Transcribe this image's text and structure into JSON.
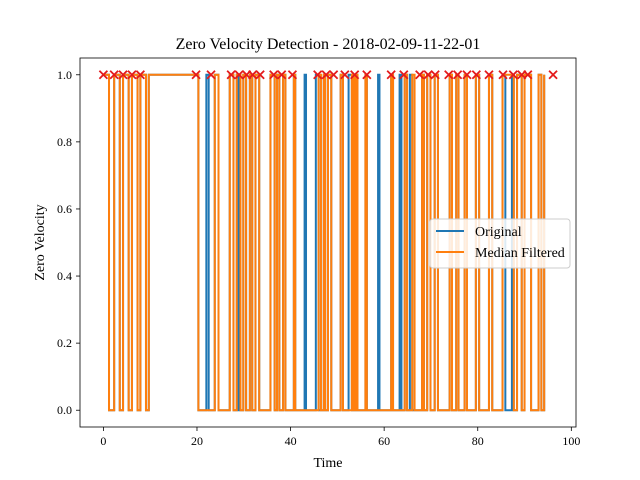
{
  "colors": {
    "original": "#1f77b4",
    "filtered": "#ff7f0e",
    "marker": "#e41a1c",
    "legend_border": "#cccccc"
  },
  "chart_data": {
    "type": "line",
    "title": "Zero Velocity Detection - 2018-02-09-11-22-01",
    "xlabel": "Time",
    "ylabel": "Zero Velocity",
    "xlim": [
      -5,
      101
    ],
    "ylim": [
      -0.05,
      1.05
    ],
    "xticks": [
      0,
      20,
      40,
      60,
      80,
      100
    ],
    "yticks": [
      0.0,
      0.2,
      0.4,
      0.6,
      0.8,
      1.0
    ],
    "xtick_labels": [
      "0",
      "20",
      "40",
      "60",
      "80",
      "100"
    ],
    "ytick_labels": [
      "0.0",
      "0.2",
      "0.4",
      "0.6",
      "0.8",
      "1.0"
    ],
    "legend": {
      "placement": "center-right",
      "entries": [
        "Original",
        "Median Filtered"
      ]
    },
    "grid": false,
    "series": [
      {
        "name": "Original",
        "step": "post",
        "points": [
          [
            0,
            1
          ],
          [
            1.2,
            0
          ],
          [
            2.3,
            1
          ],
          [
            3.5,
            0
          ],
          [
            4.2,
            1
          ],
          [
            5.4,
            0
          ],
          [
            6.1,
            1
          ],
          [
            7.3,
            0
          ],
          [
            7.9,
            1
          ],
          [
            9.1,
            0
          ],
          [
            9.7,
            1
          ],
          [
            20.3,
            0
          ],
          [
            22.0,
            1
          ],
          [
            22.5,
            0
          ],
          [
            23.8,
            1
          ],
          [
            24.6,
            0
          ],
          [
            27.0,
            1
          ],
          [
            27.8,
            0
          ],
          [
            28.5,
            1
          ],
          [
            28.9,
            0
          ],
          [
            29.9,
            1
          ],
          [
            30.5,
            0
          ],
          [
            31.3,
            1
          ],
          [
            31.8,
            0
          ],
          [
            32.5,
            1
          ],
          [
            33.3,
            0
          ],
          [
            35.7,
            1
          ],
          [
            36.6,
            0
          ],
          [
            37.1,
            1
          ],
          [
            37.6,
            0
          ],
          [
            38.4,
            1
          ],
          [
            38.9,
            0
          ],
          [
            40.7,
            1
          ],
          [
            41.0,
            0
          ],
          [
            43.0,
            1
          ],
          [
            43.3,
            0
          ],
          [
            45.4,
            1
          ],
          [
            46.0,
            0
          ],
          [
            47.1,
            1
          ],
          [
            47.4,
            0
          ],
          [
            48.0,
            1
          ],
          [
            48.7,
            0
          ],
          [
            50.7,
            1
          ],
          [
            51.2,
            0
          ],
          [
            52.4,
            1
          ],
          [
            53.1,
            0
          ],
          [
            53.9,
            1
          ],
          [
            54.3,
            0
          ],
          [
            56.0,
            1
          ],
          [
            56.3,
            0
          ],
          [
            58.7,
            1
          ],
          [
            59.0,
            0
          ],
          [
            61.5,
            1
          ],
          [
            61.9,
            0
          ],
          [
            63.3,
            1
          ],
          [
            63.7,
            0
          ],
          [
            64.4,
            1
          ],
          [
            64.9,
            0
          ],
          [
            65.5,
            1
          ],
          [
            66.0,
            0
          ],
          [
            68.1,
            1
          ],
          [
            68.5,
            0
          ],
          [
            69.2,
            1
          ],
          [
            69.9,
            0
          ],
          [
            70.8,
            1
          ],
          [
            71.5,
            0
          ],
          [
            74.0,
            1
          ],
          [
            74.5,
            0
          ],
          [
            75.4,
            1
          ],
          [
            75.9,
            0
          ],
          [
            77.2,
            1
          ],
          [
            77.7,
            0
          ],
          [
            79.6,
            1
          ],
          [
            80.3,
            0
          ],
          [
            82.4,
            1
          ],
          [
            83.1,
            0
          ],
          [
            85.3,
            1
          ],
          [
            85.9,
            0
          ],
          [
            87.3,
            1
          ],
          [
            87.7,
            0
          ],
          [
            88.4,
            1
          ],
          [
            89.4,
            0
          ],
          [
            90.0,
            1
          ],
          [
            91.4,
            0
          ],
          [
            93.0,
            1
          ],
          [
            93.6,
            0
          ],
          [
            94.2,
            1
          ]
        ]
      },
      {
        "name": "Median Filtered",
        "step": "post",
        "points": [
          [
            0,
            1
          ],
          [
            1.2,
            0
          ],
          [
            2.3,
            1
          ],
          [
            3.5,
            0
          ],
          [
            4.2,
            1
          ],
          [
            5.4,
            0
          ],
          [
            6.1,
            1
          ],
          [
            7.3,
            0
          ],
          [
            7.9,
            1
          ],
          [
            9.1,
            0
          ],
          [
            9.7,
            1
          ],
          [
            20.3,
            0
          ],
          [
            23.8,
            1
          ],
          [
            24.6,
            0
          ],
          [
            27.0,
            1
          ],
          [
            27.8,
            0
          ],
          [
            28.5,
            1
          ],
          [
            29.3,
            0
          ],
          [
            29.9,
            1
          ],
          [
            30.5,
            0
          ],
          [
            31.3,
            1
          ],
          [
            31.8,
            0
          ],
          [
            32.5,
            1
          ],
          [
            33.3,
            0
          ],
          [
            35.7,
            1
          ],
          [
            36.6,
            0
          ],
          [
            37.1,
            1
          ],
          [
            37.6,
            0
          ],
          [
            38.4,
            1
          ],
          [
            38.9,
            0
          ],
          [
            40.7,
            1
          ],
          [
            41.0,
            0
          ],
          [
            46.0,
            1
          ],
          [
            46.5,
            0
          ],
          [
            47.1,
            1
          ],
          [
            47.4,
            0
          ],
          [
            48.0,
            1
          ],
          [
            48.7,
            0
          ],
          [
            50.7,
            1
          ],
          [
            51.2,
            0
          ],
          [
            53.1,
            1
          ],
          [
            53.5,
            0
          ],
          [
            53.9,
            1
          ],
          [
            54.3,
            0
          ],
          [
            56.0,
            1
          ],
          [
            56.3,
            0
          ],
          [
            61.5,
            1
          ],
          [
            61.9,
            0
          ],
          [
            64.4,
            1
          ],
          [
            64.9,
            0
          ],
          [
            66.0,
            1
          ],
          [
            66.5,
            0
          ],
          [
            68.1,
            1
          ],
          [
            68.5,
            0
          ],
          [
            69.2,
            1
          ],
          [
            69.9,
            0
          ],
          [
            70.8,
            1
          ],
          [
            71.5,
            0
          ],
          [
            74.0,
            1
          ],
          [
            74.5,
            0
          ],
          [
            75.4,
            1
          ],
          [
            75.9,
            0
          ],
          [
            77.2,
            1
          ],
          [
            77.7,
            0
          ],
          [
            79.6,
            1
          ],
          [
            80.3,
            0
          ],
          [
            82.4,
            1
          ],
          [
            83.1,
            0
          ],
          [
            85.3,
            1
          ],
          [
            87.7,
            0
          ],
          [
            88.4,
            1
          ],
          [
            89.4,
            0
          ],
          [
            90.0,
            1
          ],
          [
            91.4,
            0
          ],
          [
            93.0,
            1
          ],
          [
            93.6,
            0
          ],
          [
            94.2,
            1
          ]
        ]
      }
    ],
    "markers": {
      "symbol": "x",
      "y": 1.0,
      "x": [
        0,
        2.3,
        4.2,
        6.1,
        7.9,
        19.8,
        23.0,
        27.3,
        29.0,
        30.6,
        31.9,
        33.5,
        36.4,
        38.1,
        40.4,
        45.8,
        47.6,
        49.2,
        51.6,
        53.7,
        56.3,
        61.5,
        64.2,
        67.6,
        69.4,
        70.9,
        73.8,
        75.7,
        77.7,
        79.7,
        82.4,
        85.4,
        87.6,
        89.4,
        90.7,
        96.1
      ]
    }
  }
}
